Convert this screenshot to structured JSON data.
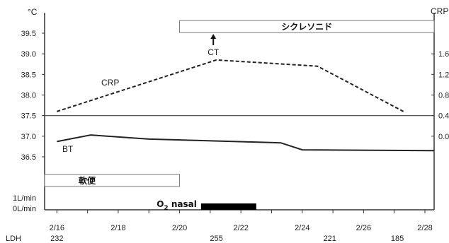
{
  "chart_data": {
    "type": "line",
    "title": "",
    "left_axis_unit": "°C",
    "right_axis_unit": "CRP",
    "temp_ticks": [
      36.5,
      37.0,
      37.5,
      38.0,
      38.5,
      39.0,
      39.5
    ],
    "temp_tick_labels": [
      "36.5",
      "37.0",
      "37.5",
      "38.0",
      "38.5",
      "39.0",
      "39.5"
    ],
    "temp_range": [
      36.5,
      39.5
    ],
    "right_ticks": [
      {
        "label": "0.0",
        "at_temp": 37.0
      },
      {
        "label": "0.4",
        "at_temp": 37.5
      },
      {
        "label": "0.8",
        "at_temp": 38.0
      },
      {
        "label": "1.2",
        "at_temp": 38.5
      },
      {
        "label": "1.6",
        "at_temp": 39.0
      }
    ],
    "o2_labels": [
      "1L/min",
      "0L/min"
    ],
    "x_tick_labels": [
      "2/16",
      "2/18",
      "2/20",
      "2/22",
      "2/24",
      "2/26",
      "2/28"
    ],
    "x_ticks_day": [
      16,
      17,
      18,
      19,
      20,
      21,
      22,
      23,
      24,
      25,
      26,
      27,
      28
    ],
    "x_range_day": [
      15.6,
      28.3
    ],
    "series": [
      {
        "name": "BT",
        "style": "solid",
        "axis": "temp",
        "x_day": [
          16,
          17.1,
          19,
          23.3,
          24,
          28.3
        ],
        "y": [
          36.87,
          37.03,
          36.93,
          36.84,
          36.67,
          36.65
        ]
      },
      {
        "name": "CRP",
        "style": "dashed",
        "axis": "temp",
        "x_day": [
          16,
          21.2,
          24.5,
          27.3
        ],
        "y": [
          37.6,
          38.85,
          38.7,
          37.6
        ]
      }
    ],
    "reference_line_temp": 37.5,
    "annotations": [
      {
        "text": "CT",
        "x_day": 21.1,
        "temp": 38.95,
        "arrow": true
      }
    ],
    "treatment_bars": [
      {
        "label": "シクレソニド",
        "start_day": 20.0,
        "end_day": 28.3,
        "band": "top"
      },
      {
        "label": "軟便",
        "start_day": 15.6,
        "end_day": 20.0,
        "band": "middle"
      }
    ],
    "o2_bar": {
      "label_main": "O",
      "label_sub": "2",
      "label_rest": " nasal",
      "start_day": 20.7,
      "end_day": 22.5
    },
    "lab_row": {
      "name": "LDH",
      "entries": [
        {
          "x_day": 16,
          "value": "232"
        },
        {
          "x_day": 21.2,
          "value": "255"
        },
        {
          "x_day": 24.9,
          "value": "221"
        },
        {
          "x_day": 27.1,
          "value": "185"
        }
      ]
    },
    "grid": false,
    "legend": "none"
  }
}
